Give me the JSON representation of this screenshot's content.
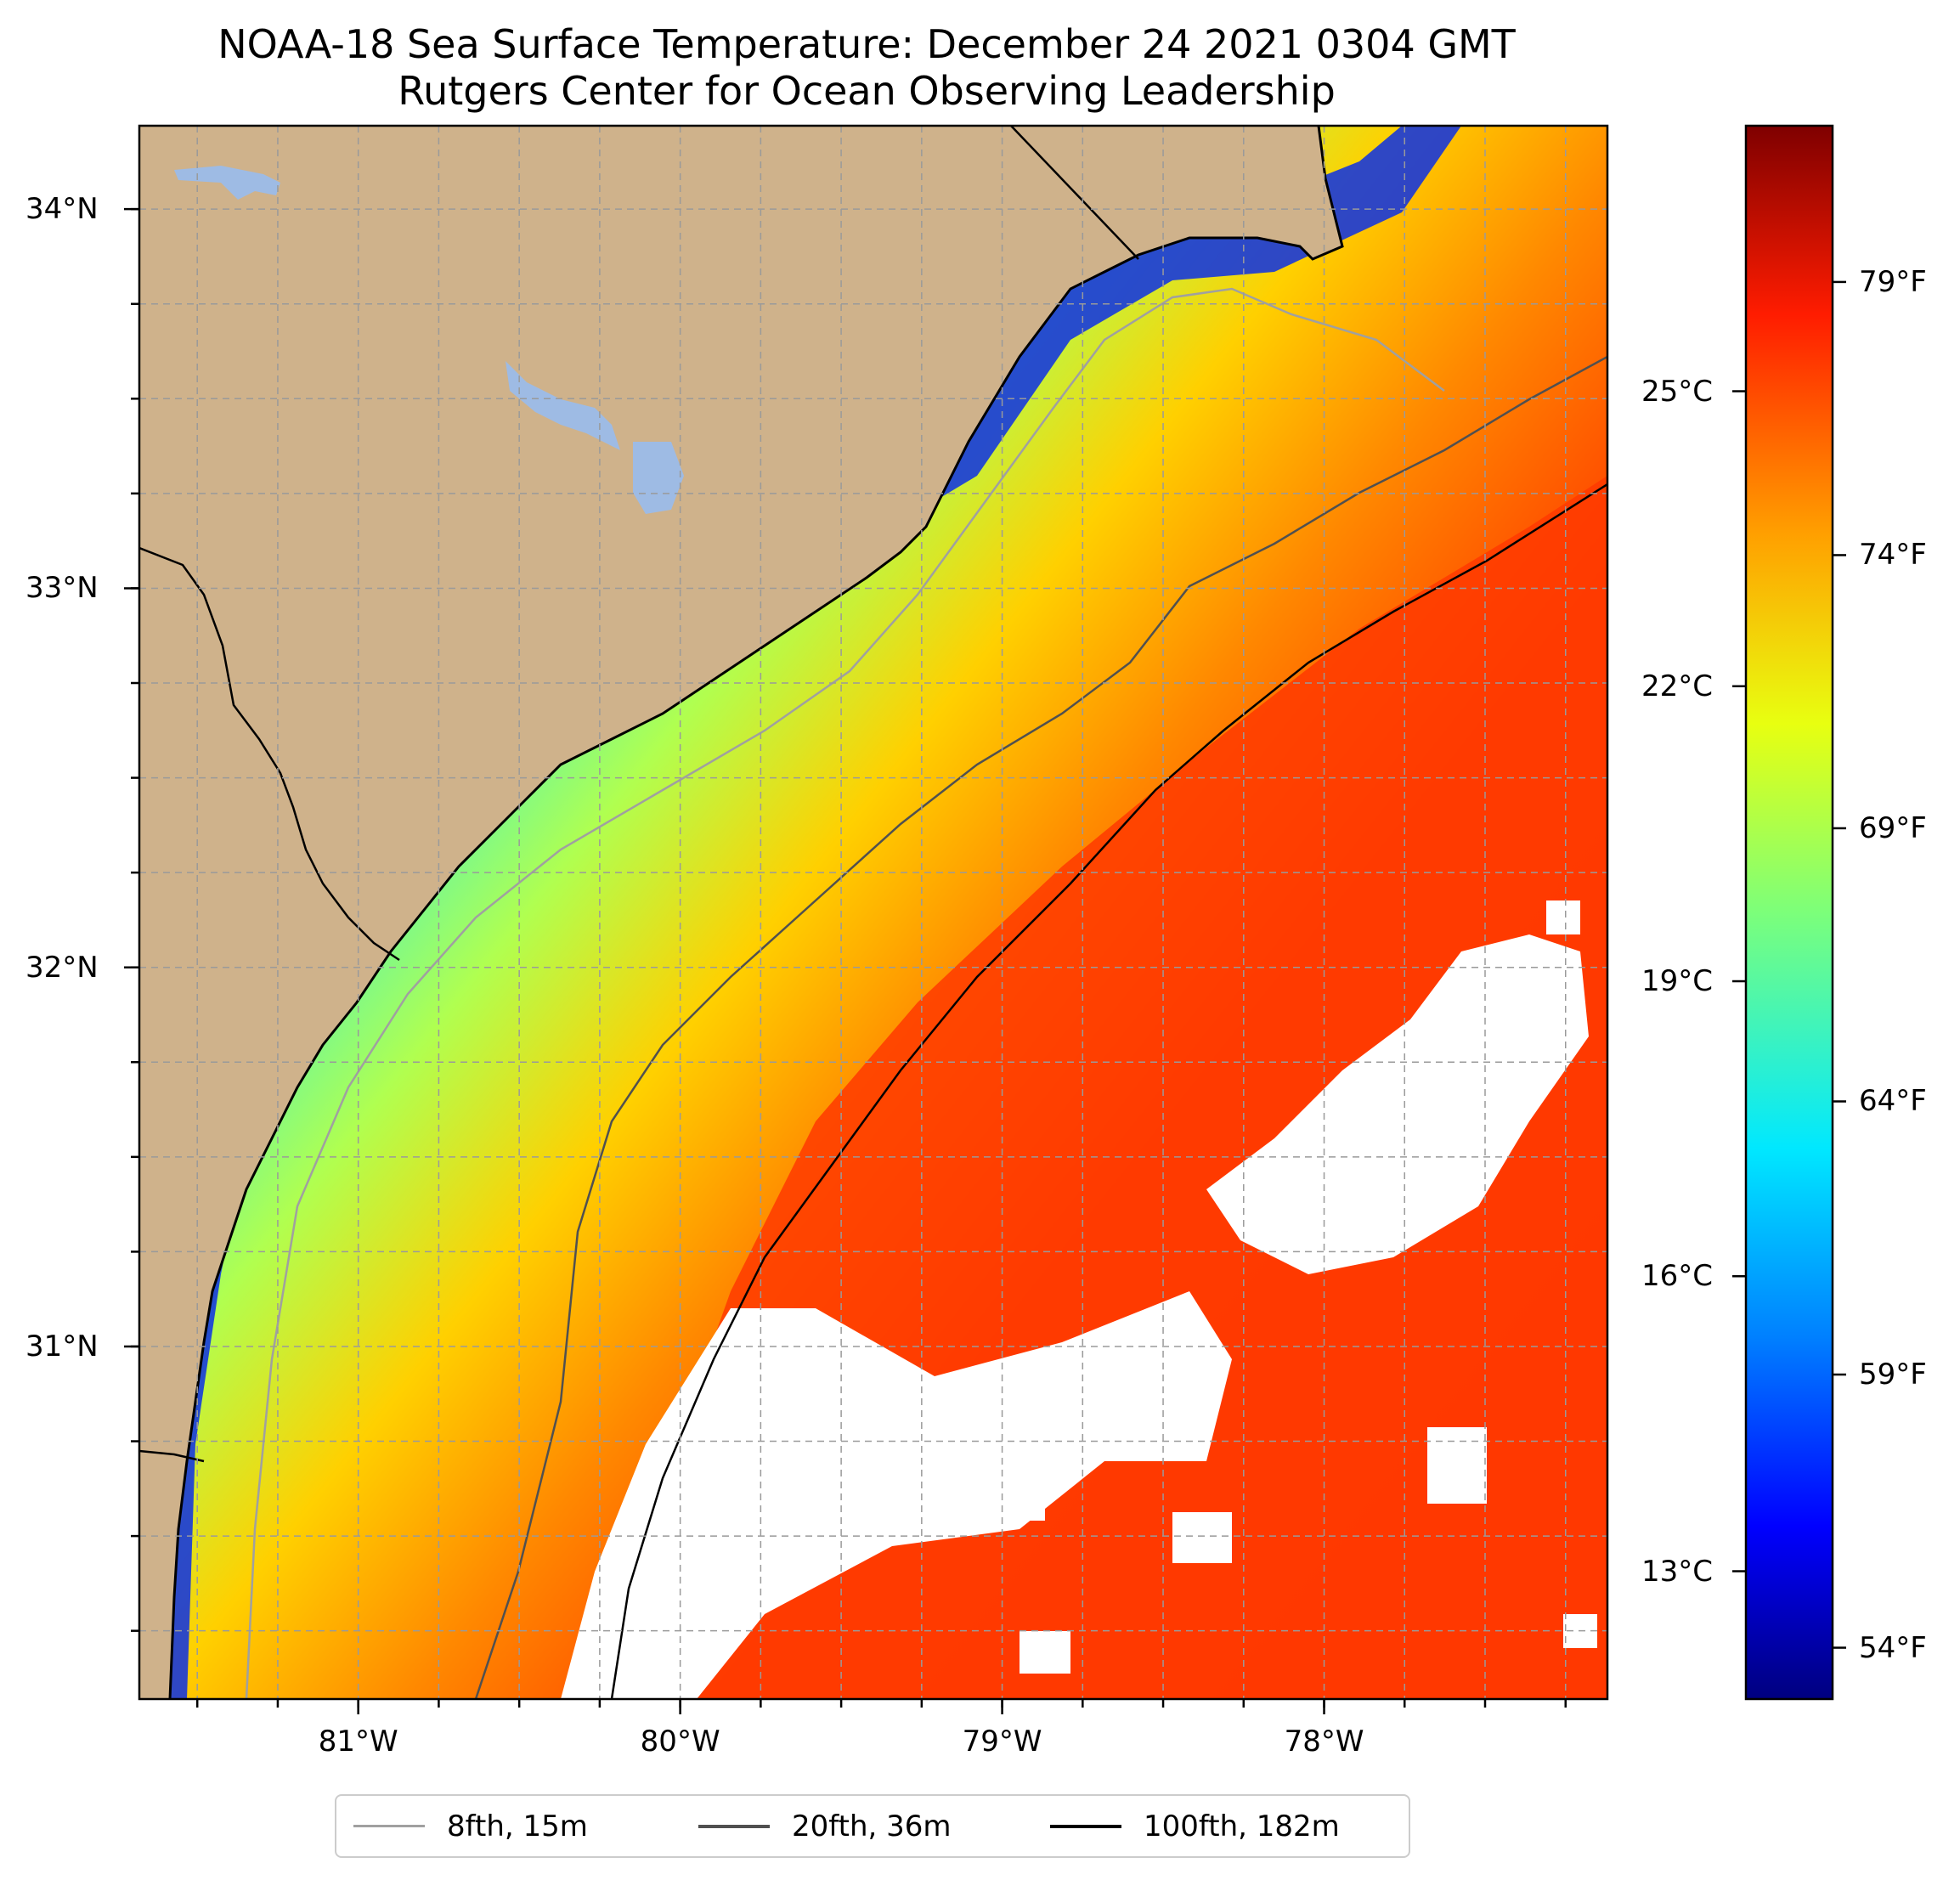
{
  "title": "NOAA-18 Sea Surface Temperature: December 24 2021 0304 GMT",
  "subtitle": "Rutgers Center for Ocean Observing Leadership",
  "map": {
    "lon_range": [
      -81.68,
      -77.12
    ],
    "lat_range": [
      30.07,
      34.22
    ],
    "lat_ticks": [
      {
        "value": 34,
        "label": "34°N"
      },
      {
        "value": 33,
        "label": "33°N"
      },
      {
        "value": 32,
        "label": "32°N"
      },
      {
        "value": 31,
        "label": "31°N"
      }
    ],
    "lon_ticks": [
      {
        "value": -81,
        "label": "81°W"
      },
      {
        "value": -80,
        "label": "80°W"
      },
      {
        "value": -79,
        "label": "79°W"
      },
      {
        "value": -78,
        "label": "78°W"
      }
    ],
    "gridlines": true,
    "colors": {
      "land": "#cfb28b",
      "lakes": "#9ebbe4",
      "no_data": "#ffffff"
    }
  },
  "colorbar": {
    "colormap": "jet",
    "range_celsius": [
      11.7,
      27.7
    ],
    "celsius_ticks": [
      {
        "value": 13,
        "label": "13°C"
      },
      {
        "value": 16,
        "label": "16°C"
      },
      {
        "value": 19,
        "label": "19°C"
      },
      {
        "value": 22,
        "label": "22°C"
      },
      {
        "value": 25,
        "label": "25°C"
      }
    ],
    "fahrenheit_ticks": [
      {
        "value": 54,
        "label": "54°F"
      },
      {
        "value": 59,
        "label": "59°F"
      },
      {
        "value": 64,
        "label": "64°F"
      },
      {
        "value": 69,
        "label": "69°F"
      },
      {
        "value": 74,
        "label": "74°F"
      },
      {
        "value": 79,
        "label": "79°F"
      }
    ]
  },
  "legend": {
    "placement": "bottom-center",
    "entries": [
      {
        "label": "8fth, 15m",
        "color": "#a0a0a0"
      },
      {
        "label": "20fth, 36m",
        "color": "#505050"
      },
      {
        "label": "100fth, 182m",
        "color": "#000000"
      }
    ]
  }
}
